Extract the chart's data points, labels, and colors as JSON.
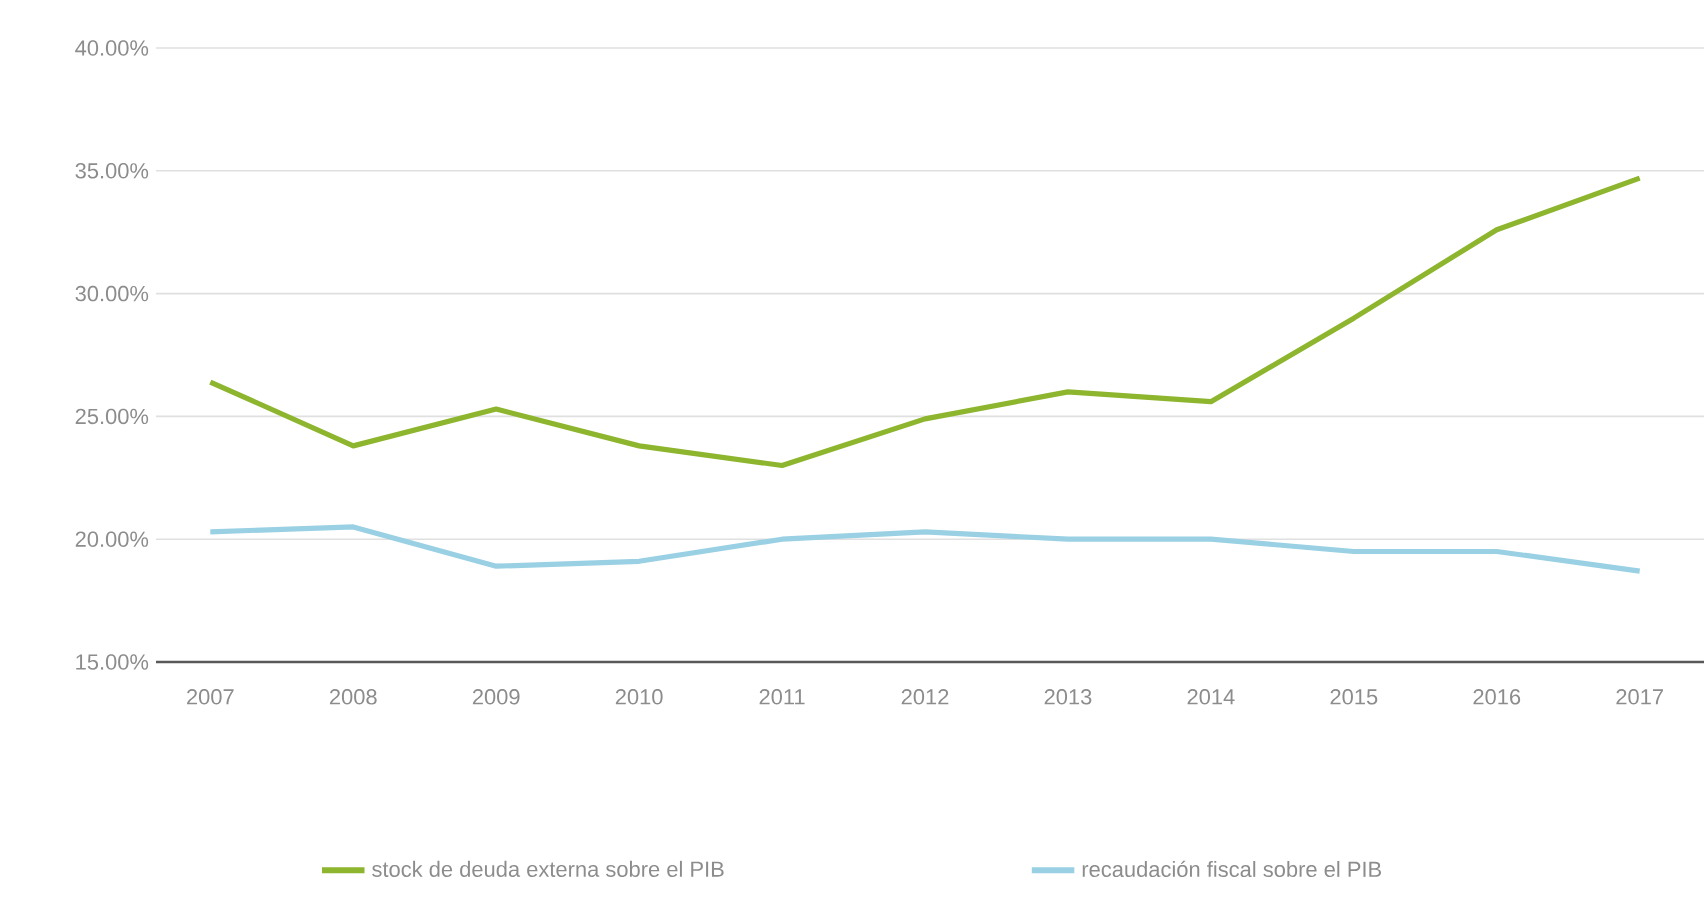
{
  "chart_data": {
    "type": "line",
    "categories": [
      "2007",
      "2008",
      "2009",
      "2010",
      "2011",
      "2012",
      "2013",
      "2014",
      "2015",
      "2016",
      "2017"
    ],
    "series": [
      {
        "name": "stock de deuda externa sobre el PIB",
        "color": "#8db52e",
        "values": [
          26.4,
          23.8,
          25.3,
          23.8,
          23.0,
          24.9,
          26.0,
          25.6,
          29.0,
          32.6,
          34.7
        ]
      },
      {
        "name": "recaudación fiscal sobre el PIB",
        "color": "#9ad0e3",
        "values": [
          20.3,
          20.5,
          18.9,
          19.1,
          20.0,
          20.3,
          20.0,
          20.0,
          19.5,
          19.5,
          18.7
        ]
      }
    ],
    "ylim": [
      15,
      40
    ],
    "yticks": [
      {
        "value": 15,
        "label": "15.00%"
      },
      {
        "value": 20,
        "label": "20.00%"
      },
      {
        "value": 25,
        "label": "25.00%"
      },
      {
        "value": 30,
        "label": "30.00%"
      },
      {
        "value": 35,
        "label": "35.00%"
      },
      {
        "value": 40,
        "label": "40.00%"
      }
    ],
    "grid": "y",
    "legend": "bottom"
  }
}
